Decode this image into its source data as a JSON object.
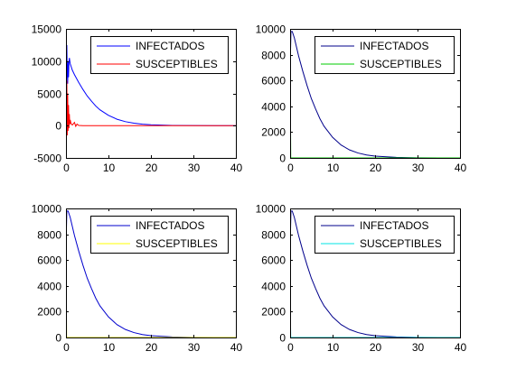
{
  "figure": {
    "background": "#ffffff"
  },
  "chart_data": [
    {
      "type": "line",
      "xlim": [
        0,
        40
      ],
      "ylim": [
        -5000,
        15000
      ],
      "xticks": [
        0,
        10,
        20,
        30,
        40
      ],
      "yticks": [
        -5000,
        0,
        5000,
        10000,
        15000
      ],
      "xtick_labels": [
        "0",
        "10",
        "20",
        "30",
        "40"
      ],
      "ytick_labels": [
        "-5000",
        "0",
        "5000",
        "10000",
        "15000"
      ],
      "legend_position": "top-right",
      "grid": false,
      "series": [
        {
          "name": "INFECTADOS",
          "color": "#0000ff",
          "points": [
            [
              0,
              6800
            ],
            [
              0.1,
              9200
            ],
            [
              0.2,
              12500
            ],
            [
              0.3,
              8000
            ],
            [
              0.4,
              6500
            ],
            [
              0.5,
              10000
            ],
            [
              0.6,
              7500
            ],
            [
              0.7,
              9800
            ],
            [
              0.8,
              10500
            ],
            [
              1.0,
              9600
            ],
            [
              1.5,
              8600
            ],
            [
              2,
              7900
            ],
            [
              3,
              6700
            ],
            [
              4,
              5600
            ],
            [
              5,
              4600
            ],
            [
              6,
              3800
            ],
            [
              7,
              3050
            ],
            [
              8,
              2450
            ],
            [
              10,
              1600
            ],
            [
              12,
              1000
            ],
            [
              14,
              620
            ],
            [
              16,
              380
            ],
            [
              18,
              230
            ],
            [
              20,
              140
            ],
            [
              25,
              40
            ],
            [
              30,
              10
            ],
            [
              35,
              3
            ],
            [
              40,
              0
            ]
          ]
        },
        {
          "name": "SUSCEPTIBLES",
          "color": "#ff0000",
          "points": [
            [
              0,
              9000
            ],
            [
              0.1,
              -3000
            ],
            [
              0.2,
              7000
            ],
            [
              0.3,
              -1500
            ],
            [
              0.4,
              5000
            ],
            [
              0.5,
              -800
            ],
            [
              0.6,
              3200
            ],
            [
              0.7,
              -400
            ],
            [
              0.8,
              1800
            ],
            [
              0.9,
              200
            ],
            [
              1.0,
              900
            ],
            [
              1.2,
              300
            ],
            [
              1.5,
              100
            ],
            [
              2,
              500
            ],
            [
              2.3,
              -100
            ],
            [
              2.6,
              250
            ],
            [
              3,
              30
            ],
            [
              4,
              0
            ],
            [
              40,
              0
            ]
          ]
        }
      ]
    },
    {
      "type": "line",
      "xlim": [
        0,
        40
      ],
      "ylim": [
        0,
        10000
      ],
      "xticks": [
        0,
        10,
        20,
        30,
        40
      ],
      "yticks": [
        0,
        2000,
        4000,
        6000,
        8000,
        10000
      ],
      "xtick_labels": [
        "0",
        "10",
        "20",
        "30",
        "40"
      ],
      "ytick_labels": [
        "0",
        "2000",
        "4000",
        "6000",
        "8000",
        "10000"
      ],
      "legend_position": "top-right",
      "grid": false,
      "series": [
        {
          "name": "INFECTADOS",
          "color": "#00008b",
          "points": [
            [
              0,
              6800
            ],
            [
              0.2,
              9800
            ],
            [
              0.5,
              9800
            ],
            [
              1,
              9300
            ],
            [
              2,
              7900
            ],
            [
              3,
              6700
            ],
            [
              4,
              5600
            ],
            [
              5,
              4600
            ],
            [
              6,
              3800
            ],
            [
              7,
              3050
            ],
            [
              8,
              2450
            ],
            [
              10,
              1600
            ],
            [
              12,
              1000
            ],
            [
              14,
              620
            ],
            [
              16,
              380
            ],
            [
              18,
              230
            ],
            [
              20,
              140
            ],
            [
              25,
              40
            ],
            [
              30,
              10
            ],
            [
              35,
              3
            ],
            [
              40,
              0
            ]
          ]
        },
        {
          "name": "SUSCEPTIBLES",
          "color": "#00cc00",
          "points": [
            [
              0,
              8000
            ],
            [
              0.15,
              0
            ],
            [
              40,
              0
            ]
          ]
        }
      ]
    },
    {
      "type": "line",
      "xlim": [
        0,
        40
      ],
      "ylim": [
        0,
        10000
      ],
      "xticks": [
        0,
        10,
        20,
        30,
        40
      ],
      "yticks": [
        0,
        2000,
        4000,
        6000,
        8000,
        10000
      ],
      "xtick_labels": [
        "0",
        "10",
        "20",
        "30",
        "40"
      ],
      "ytick_labels": [
        "0",
        "2000",
        "4000",
        "6000",
        "8000",
        "10000"
      ],
      "legend_position": "top-right",
      "grid": false,
      "series": [
        {
          "name": "INFECTADOS",
          "color": "#0000cd",
          "points": [
            [
              0,
              6800
            ],
            [
              0.2,
              9800
            ],
            [
              0.5,
              9800
            ],
            [
              1,
              9300
            ],
            [
              2,
              7900
            ],
            [
              3,
              6700
            ],
            [
              4,
              5600
            ],
            [
              5,
              4600
            ],
            [
              6,
              3800
            ],
            [
              7,
              3050
            ],
            [
              8,
              2450
            ],
            [
              10,
              1600
            ],
            [
              12,
              1000
            ],
            [
              14,
              620
            ],
            [
              16,
              380
            ],
            [
              18,
              230
            ],
            [
              20,
              140
            ],
            [
              25,
              40
            ],
            [
              30,
              10
            ],
            [
              35,
              3
            ],
            [
              40,
              0
            ]
          ]
        },
        {
          "name": "SUSCEPTIBLES",
          "color": "#ffff00",
          "points": [
            [
              0,
              6500
            ],
            [
              0.15,
              0
            ],
            [
              40,
              0
            ]
          ]
        }
      ]
    },
    {
      "type": "line",
      "xlim": [
        0,
        40
      ],
      "ylim": [
        0,
        10000
      ],
      "xticks": [
        0,
        10,
        20,
        30,
        40
      ],
      "yticks": [
        0,
        2000,
        4000,
        6000,
        8000,
        10000
      ],
      "xtick_labels": [
        "0",
        "10",
        "20",
        "30",
        "40"
      ],
      "ytick_labels": [
        "0",
        "2000",
        "4000",
        "6000",
        "8000",
        "10000"
      ],
      "legend_position": "top-right",
      "grid": false,
      "series": [
        {
          "name": "INFECTADOS",
          "color": "#00008b",
          "points": [
            [
              0,
              6800
            ],
            [
              0.2,
              9800
            ],
            [
              0.5,
              9800
            ],
            [
              1,
              9300
            ],
            [
              2,
              7900
            ],
            [
              3,
              6700
            ],
            [
              4,
              5600
            ],
            [
              5,
              4600
            ],
            [
              6,
              3800
            ],
            [
              7,
              3050
            ],
            [
              8,
              2450
            ],
            [
              10,
              1600
            ],
            [
              12,
              1000
            ],
            [
              14,
              620
            ],
            [
              16,
              380
            ],
            [
              18,
              230
            ],
            [
              20,
              140
            ],
            [
              25,
              40
            ],
            [
              30,
              10
            ],
            [
              35,
              3
            ],
            [
              40,
              0
            ]
          ]
        },
        {
          "name": "SUSCEPTIBLES",
          "color": "#00e5e5",
          "points": [
            [
              0,
              3000
            ],
            [
              0.15,
              0
            ],
            [
              40,
              0
            ]
          ]
        }
      ]
    }
  ]
}
